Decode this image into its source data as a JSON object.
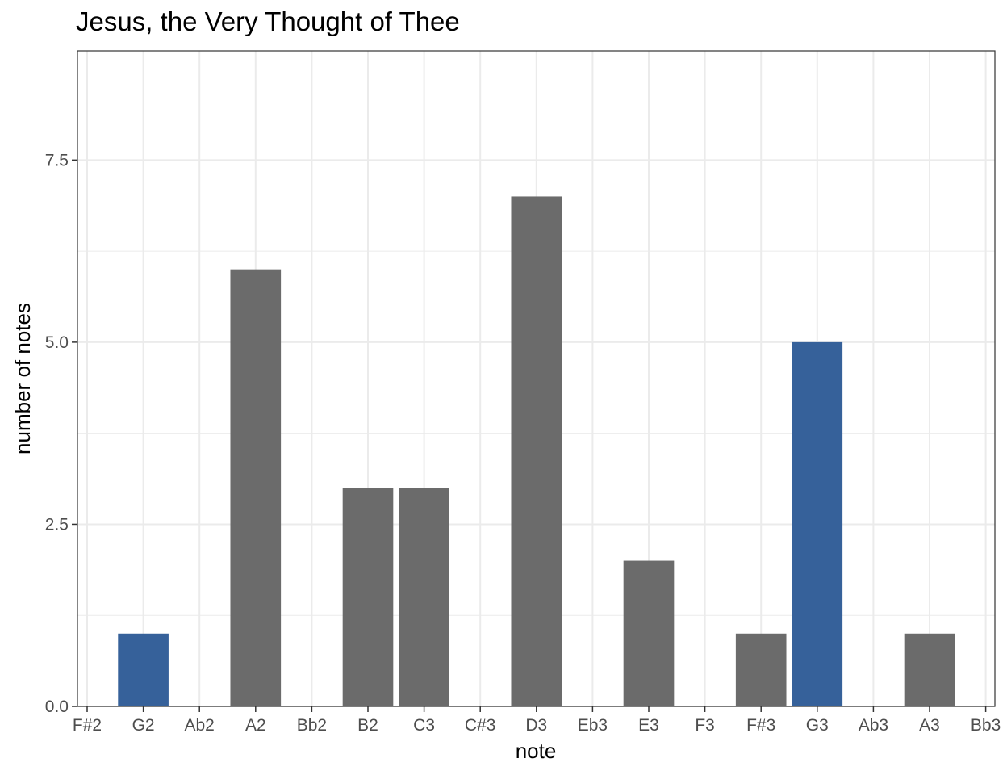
{
  "chart_data": {
    "type": "bar",
    "title": "Jesus, the Very Thought of Thee",
    "xlabel": "note",
    "ylabel": "number of notes",
    "categories": [
      "F#2",
      "G2",
      "Ab2",
      "A2",
      "Bb2",
      "B2",
      "C3",
      "C#3",
      "D3",
      "Eb3",
      "E3",
      "F3",
      "F#3",
      "G3",
      "Ab3",
      "A3",
      "Bb3"
    ],
    "values": [
      0,
      1,
      0,
      6,
      0,
      3,
      3,
      0,
      7,
      0,
      2,
      0,
      1,
      5,
      0,
      1,
      0
    ],
    "highlight": [
      false,
      true,
      false,
      false,
      false,
      false,
      false,
      false,
      false,
      false,
      false,
      false,
      false,
      true,
      false,
      false,
      false
    ],
    "ylim": [
      0,
      9
    ],
    "yticks": [
      0,
      2.5,
      5,
      7.5
    ],
    "ytick_labels": [
      "0.0",
      "2.5",
      "5.0",
      "7.5"
    ],
    "grid": true,
    "colors": {
      "bar": "#6b6b6b",
      "highlight": "#36619a",
      "grid": "#ebebeb",
      "panel_border": "#333333"
    }
  }
}
